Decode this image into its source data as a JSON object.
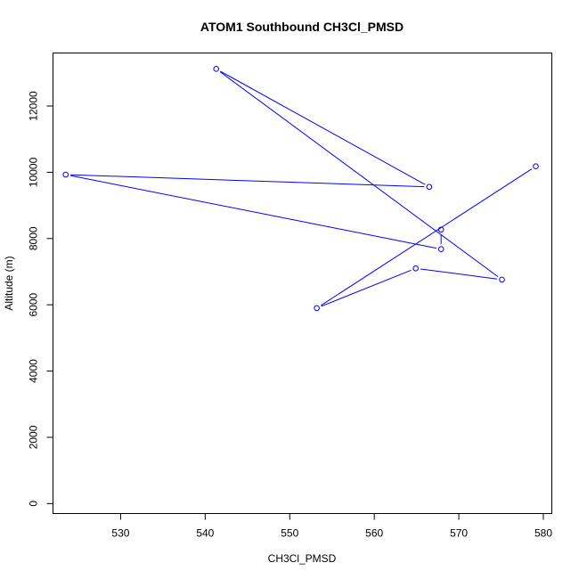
{
  "chart_data": {
    "type": "line",
    "title": "ATOM1 Southbound CH3Cl_PMSD",
    "xlabel": "CH3Cl_PMSD",
    "ylabel": "Altitude (m)",
    "xlim": [
      522,
      581
    ],
    "ylim": [
      -300,
      13600
    ],
    "xticks": [
      530,
      540,
      550,
      560,
      570,
      580
    ],
    "yticks": [
      0,
      2000,
      4000,
      6000,
      8000,
      10000,
      12000
    ],
    "grid": false,
    "series": [
      {
        "color": "#0000ff",
        "marker": "open-circle",
        "points": [
          {
            "x": 579.1,
            "y": 10180
          },
          {
            "x": 553.2,
            "y": 5900
          },
          {
            "x": 564.9,
            "y": 7100
          },
          {
            "x": 575.1,
            "y": 6760
          },
          {
            "x": 541.3,
            "y": 13120
          },
          {
            "x": 566.5,
            "y": 9560
          },
          {
            "x": 523.5,
            "y": 9930
          },
          {
            "x": 567.9,
            "y": 7680
          },
          {
            "x": 567.9,
            "y": 8270
          }
        ]
      }
    ]
  }
}
